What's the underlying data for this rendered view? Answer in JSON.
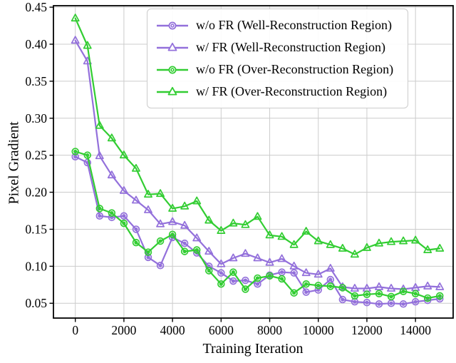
{
  "figure": {
    "background": "#ffffff",
    "grid_color": "#cccccc",
    "spine_color": "#000000",
    "accent_purple": "#9370DB",
    "accent_green": "#32CD32"
  },
  "chart_data": {
    "type": "line",
    "title": "",
    "xlabel": "Training Iteration",
    "ylabel": "Pixel Gradient",
    "xlim": [
      -900,
      15550
    ],
    "ylim": [
      0.03,
      0.452
    ],
    "xticks": [
      0,
      2000,
      4000,
      6000,
      8000,
      10000,
      12000,
      14000
    ],
    "yticks": [
      0.05,
      0.1,
      0.15,
      0.2,
      0.25,
      0.3,
      0.35,
      0.4,
      0.45
    ],
    "grid": true,
    "legend_position": "upper center",
    "x": [
      0,
      500,
      1000,
      1500,
      2000,
      2500,
      3000,
      3500,
      4000,
      4500,
      5000,
      5500,
      6000,
      6500,
      7000,
      7500,
      8000,
      8500,
      9000,
      9500,
      10000,
      10500,
      11000,
      11500,
      12000,
      12500,
      13000,
      13500,
      14000,
      14500,
      15000
    ],
    "series": [
      {
        "name": "w/o FR (Well-Reconstruction Region)",
        "color": "#9370DB",
        "marker": "circle",
        "values": [
          0.248,
          0.24,
          0.168,
          0.166,
          0.168,
          0.15,
          0.112,
          0.101,
          0.139,
          0.131,
          0.118,
          0.1,
          0.091,
          0.08,
          0.081,
          0.076,
          0.088,
          0.092,
          0.091,
          0.065,
          0.068,
          0.082,
          0.055,
          0.052,
          0.051,
          0.049,
          0.05,
          0.049,
          0.052,
          0.054,
          0.056
        ]
      },
      {
        "name": "w/ FR (Well-Reconstruction Region)",
        "color": "#9370DB",
        "marker": "triangle",
        "values": [
          0.405,
          0.377,
          0.249,
          0.223,
          0.202,
          0.189,
          0.176,
          0.157,
          0.16,
          0.155,
          0.138,
          0.12,
          0.103,
          0.111,
          0.117,
          0.111,
          0.105,
          0.11,
          0.1,
          0.091,
          0.089,
          0.097,
          0.072,
          0.07,
          0.07,
          0.072,
          0.07,
          0.069,
          0.071,
          0.073,
          0.072
        ]
      },
      {
        "name": "w/o FR (Over-Reconstruction Region)",
        "color": "#32CD32",
        "marker": "circle",
        "values": [
          0.255,
          0.25,
          0.178,
          0.172,
          0.158,
          0.132,
          0.119,
          0.134,
          0.143,
          0.12,
          0.122,
          0.094,
          0.076,
          0.092,
          0.069,
          0.084,
          0.087,
          0.083,
          0.064,
          0.076,
          0.074,
          0.073,
          0.071,
          0.06,
          0.062,
          0.063,
          0.059,
          0.066,
          0.063,
          0.057,
          0.06
        ]
      },
      {
        "name": "w/ FR (Over-Reconstruction Region)",
        "color": "#32CD32",
        "marker": "triangle",
        "values": [
          0.435,
          0.398,
          0.29,
          0.273,
          0.25,
          0.232,
          0.197,
          0.198,
          0.178,
          0.181,
          0.188,
          0.162,
          0.148,
          0.158,
          0.156,
          0.167,
          0.142,
          0.14,
          0.129,
          0.147,
          0.134,
          0.129,
          0.124,
          0.116,
          0.125,
          0.131,
          0.133,
          0.134,
          0.135,
          0.122,
          0.124
        ]
      }
    ]
  }
}
